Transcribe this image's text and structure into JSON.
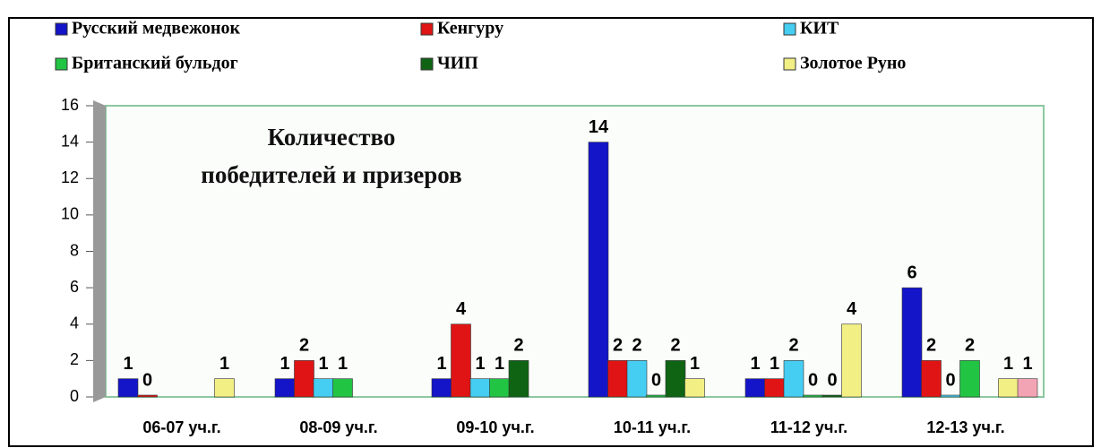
{
  "chart_data": {
    "type": "bar",
    "title": "Количество победителей и призеров",
    "categories": [
      "06-07 уч.г.",
      "08-09 уч.г.",
      "09-10 уч.г.",
      "10-11 уч.г.",
      "11-12 уч.г.",
      "12-13 уч.г."
    ],
    "series": [
      {
        "name": "Русский медвежонок",
        "color": "#1414c8",
        "values": [
          1,
          1,
          1,
          14,
          1,
          6
        ]
      },
      {
        "name": "Кенгуру",
        "color": "#e01414",
        "values": [
          0,
          2,
          4,
          2,
          1,
          2
        ]
      },
      {
        "name": "КИТ",
        "color": "#46cdf2",
        "values": [
          null,
          1,
          1,
          2,
          2,
          0
        ]
      },
      {
        "name": "Британский  бульдог",
        "color": "#22c444",
        "values": [
          null,
          1,
          1,
          0,
          0,
          2
        ]
      },
      {
        "name": "ЧИП",
        "color": "#0f6414",
        "values": [
          null,
          null,
          2,
          2,
          0,
          null
        ]
      },
      {
        "name": "Золотое Руно",
        "color": "#f2f084",
        "values": [
          1,
          null,
          null,
          1,
          4,
          1
        ]
      },
      {
        "color": "#f2a4b4",
        "values": [
          null,
          null,
          null,
          null,
          null,
          1
        ]
      }
    ],
    "ylim": [
      0,
      16
    ],
    "yticks": [
      0,
      2,
      4,
      6,
      8,
      10,
      12,
      14,
      16
    ],
    "grid": false
  }
}
